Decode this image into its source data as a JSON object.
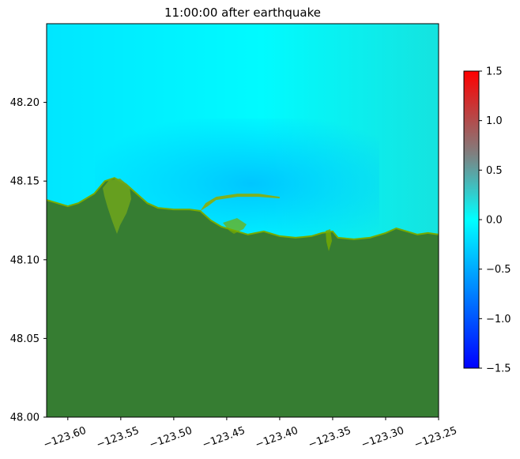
{
  "chart_data": {
    "type": "heatmap",
    "title": "11:00:00 after earthquake",
    "xlabel": "",
    "ylabel": "",
    "xlim": [
      -123.62,
      -123.25
    ],
    "ylim": [
      48.0,
      48.25
    ],
    "x_ticks": [
      -123.6,
      -123.55,
      -123.5,
      -123.45,
      -123.4,
      -123.35,
      -123.3,
      -123.25
    ],
    "x_tick_labels": [
      "−123.60",
      "−123.55",
      "−123.50",
      "−123.45",
      "−123.40",
      "−123.35",
      "−123.30",
      "−123.25"
    ],
    "y_ticks": [
      48.0,
      48.05,
      48.1,
      48.15,
      48.2
    ],
    "y_tick_labels": [
      "48.00",
      "48.05",
      "48.10",
      "48.15",
      "48.20"
    ],
    "colorbar": {
      "range": [
        -1.5,
        1.5
      ],
      "ticks": [
        -1.5,
        -1.0,
        -0.5,
        0.0,
        0.5,
        1.0,
        1.5
      ],
      "tick_labels": [
        "−1.5",
        "−1.0",
        "−0.5",
        "0.0",
        "0.5",
        "1.0",
        "1.5"
      ],
      "colors": [
        "#0000ff",
        "#00ffff",
        "#ff0000"
      ]
    },
    "land_color": "#367d32",
    "shore_color": "#77ab00",
    "water_dominant_value": 0.0,
    "coastline": [
      [
        -123.62,
        48.138
      ],
      [
        -123.61,
        48.136
      ],
      [
        -123.6,
        48.134
      ],
      [
        -123.59,
        48.136
      ],
      [
        -123.575,
        48.142
      ],
      [
        -123.565,
        48.15
      ],
      [
        -123.556,
        48.152
      ],
      [
        -123.545,
        48.148
      ],
      [
        -123.535,
        48.142
      ],
      [
        -123.525,
        48.136
      ],
      [
        -123.515,
        48.133
      ],
      [
        -123.5,
        48.132
      ],
      [
        -123.485,
        48.132
      ],
      [
        -123.475,
        48.131
      ],
      [
        -123.465,
        48.125
      ],
      [
        -123.455,
        48.121
      ],
      [
        -123.44,
        48.118
      ],
      [
        -123.43,
        48.116
      ],
      [
        -123.415,
        48.118
      ],
      [
        -123.4,
        48.115
      ],
      [
        -123.385,
        48.114
      ],
      [
        -123.37,
        48.115
      ],
      [
        -123.36,
        48.117
      ],
      [
        -123.35,
        48.118
      ],
      [
        -123.345,
        48.114
      ],
      [
        -123.33,
        48.113
      ],
      [
        -123.315,
        48.114
      ],
      [
        -123.3,
        48.117
      ],
      [
        -123.29,
        48.12
      ],
      [
        -123.28,
        48.118
      ],
      [
        -123.27,
        48.116
      ],
      [
        -123.26,
        48.117
      ],
      [
        -123.25,
        48.116
      ]
    ],
    "spit": [
      [
        -123.475,
        48.131
      ],
      [
        -123.47,
        48.136
      ],
      [
        -123.46,
        48.14
      ],
      [
        -123.44,
        48.142
      ],
      [
        -123.42,
        48.142
      ],
      [
        -123.4,
        48.14
      ],
      [
        -123.4,
        48.139
      ],
      [
        -123.42,
        48.14
      ],
      [
        -123.44,
        48.14
      ],
      [
        -123.46,
        48.138
      ],
      [
        -123.468,
        48.134
      ]
    ]
  }
}
